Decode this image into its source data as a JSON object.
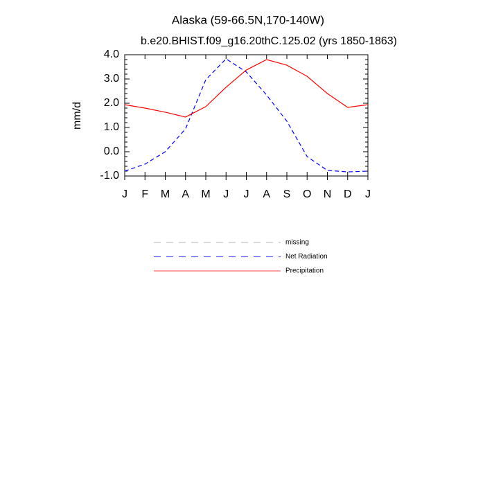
{
  "chart_data": {
    "type": "line",
    "title": "Alaska (59-66.5N,170-140W)",
    "subtitle": "b.e20.BHIST.f09_g16.20thC.125.02 (yrs 1850-1863)",
    "y_label": "mm/d",
    "categories": [
      "J",
      "F",
      "M",
      "A",
      "M",
      "J",
      "J",
      "A",
      "S",
      "O",
      "N",
      "D",
      "J"
    ],
    "series": [
      {
        "name": "missing",
        "color": "#999999",
        "dashed": true,
        "values": [
          null,
          null,
          null,
          null,
          null,
          null,
          null,
          null,
          null,
          null,
          null,
          null,
          null
        ]
      },
      {
        "name": "Net Radiation",
        "color": "#0000ff",
        "dashed": true,
        "values": [
          -0.8,
          -0.51,
          0.0,
          0.94,
          2.97,
          3.83,
          3.29,
          2.34,
          1.26,
          -0.2,
          -0.77,
          -0.83,
          -0.8
        ]
      },
      {
        "name": "Precipitation",
        "color": "#ff0000",
        "dashed": false,
        "values": [
          1.94,
          1.8,
          1.63,
          1.43,
          1.86,
          2.66,
          3.37,
          3.8,
          3.57,
          3.11,
          2.4,
          1.83,
          1.94
        ]
      }
    ],
    "ylim": [
      -1,
      4
    ],
    "yticks": [
      {
        "value": -1,
        "label": "-1.0"
      },
      {
        "value": 0,
        "label": "0.0"
      },
      {
        "value": 1,
        "label": "1.0"
      },
      {
        "value": 2,
        "label": "2.0"
      },
      {
        "value": 3,
        "label": "3.0"
      },
      {
        "value": 4,
        "label": "4.0"
      }
    ],
    "grid": false
  }
}
